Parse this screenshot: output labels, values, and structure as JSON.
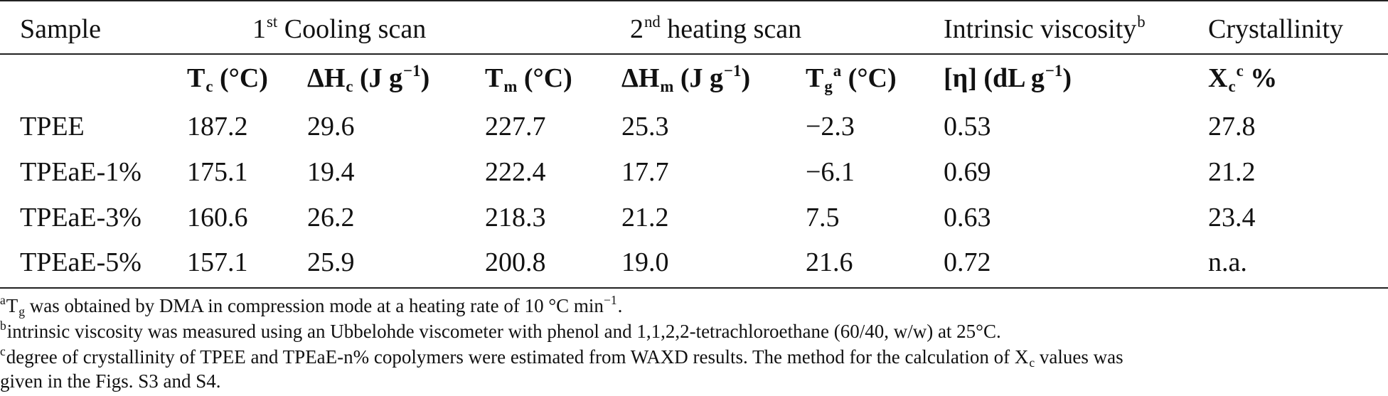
{
  "table": {
    "headers": {
      "sample": "Sample",
      "cooling": {
        "ordinal": "1",
        "suffix": "st",
        "rest": " Cooling scan"
      },
      "heating": {
        "ordinal": "2",
        "suffix": "nd",
        "rest": " heating scan"
      },
      "viscosity": {
        "text": "Intrinsic viscosity",
        "mark": "b"
      },
      "crystallinity": "Crystallinity"
    },
    "subheaders": {
      "tc": {
        "sym": "T",
        "sub": "c",
        "unit": " (°C)"
      },
      "dhc": {
        "sym": "ΔH",
        "sub": "c",
        "unit_pre": " (J g",
        "sup": "−1",
        "unit_post": ")"
      },
      "tm": {
        "sym": "T",
        "sub": "m",
        "unit": " (°C)"
      },
      "dhm": {
        "sym": "ΔH",
        "sub": "m",
        "unit_pre": " (J g",
        "sup": "−1",
        "unit_post": ")"
      },
      "tg": {
        "sym": "T",
        "sub": "g",
        "mark": "a",
        "unit": " (°C)"
      },
      "eta": {
        "pre": "[η] (dL g",
        "sup": "−1",
        "post": ")"
      },
      "xc": {
        "sym": "X",
        "sub": "c",
        "mark": "c",
        "unit": " %"
      }
    },
    "rows": [
      [
        "TPEE",
        "187.2",
        "29.6",
        "227.7",
        "25.3",
        "−2.3",
        "0.53",
        "27.8"
      ],
      [
        "TPEaE-1%",
        "175.1",
        "19.4",
        "222.4",
        "17.7",
        "−6.1",
        "0.69",
        "21.2"
      ],
      [
        "TPEaE-3%",
        "160.6",
        "26.2",
        "218.3",
        "21.2",
        "7.5",
        "0.63",
        "23.4"
      ],
      [
        "TPEaE-5%",
        "157.1",
        "25.9",
        "200.8",
        "19.0",
        "21.6",
        "0.72",
        "n.a."
      ]
    ]
  },
  "footnotes": {
    "a": {
      "mark": "a",
      "pre": "T",
      "sub": "g",
      "mid": " was obtained by DMA in compression mode at a heating rate of 10 °C min",
      "sup": "−1",
      "post": "."
    },
    "b": {
      "mark": "b",
      "text": "intrinsic viscosity was measured using an Ubbelohde viscometer with phenol and 1,1,2,2-tetrachloroethane (60/40, w/w) at 25°C."
    },
    "c": {
      "mark": "c",
      "pre": "degree of crystallinity of TPEE and TPEaE-n% copolymers were estimated from WAXD results. The method for the calculation of X",
      "sub": "c",
      "post": " values was"
    },
    "c_cont": "given in the Figs. S3 and S4."
  }
}
